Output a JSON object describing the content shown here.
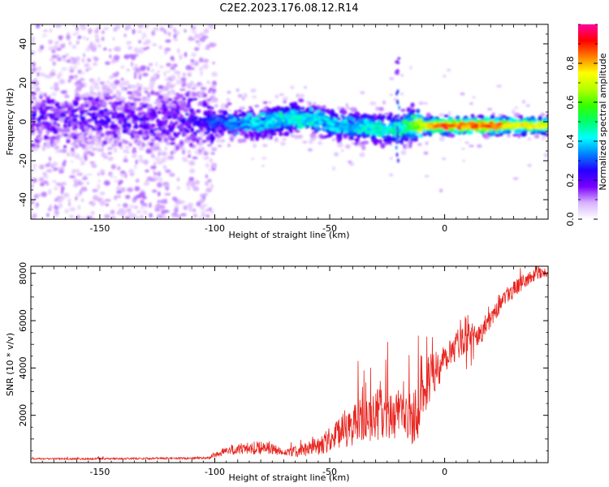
{
  "title": "C2E2.2023.176.08.12.R14",
  "chart_data": [
    {
      "type": "heatmap",
      "name": "spectrogram",
      "xlabel": "Height of straight line (km)",
      "ylabel": "Frequency (Hz)",
      "xlim": [
        -180,
        45
      ],
      "ylim": [
        -50,
        50
      ],
      "xticks": [
        -150,
        -100,
        -50,
        0
      ],
      "yticks": [
        -40,
        -20,
        0,
        20,
        40
      ],
      "xtick_labels": [
        "-150",
        "-100",
        "-50",
        "0"
      ],
      "ytick_labels": [
        "-40",
        "-20",
        "0",
        "20",
        "40"
      ],
      "ridge": {
        "x": [
          -180,
          -150,
          -120,
          -100,
          -80,
          -65,
          -55,
          -45,
          -35,
          -25,
          -20,
          -15,
          -10,
          -5,
          0,
          5,
          10,
          20,
          30,
          45
        ],
        "freq": [
          2,
          1,
          1,
          0,
          -1,
          2,
          1,
          -2,
          -3,
          -4,
          -4,
          -2,
          -2,
          -2,
          -2,
          -2,
          -2,
          -2,
          -2,
          -2
        ],
        "amplitude": [
          0.2,
          0.2,
          0.2,
          0.25,
          0.35,
          0.4,
          0.35,
          0.35,
          0.38,
          0.4,
          0.42,
          0.5,
          0.65,
          0.75,
          0.85,
          0.8,
          0.8,
          0.85,
          0.7,
          0.65
        ]
      },
      "annotations": [
        {
          "x": -20.5,
          "freq": 27,
          "note": "spur"
        }
      ],
      "colorbar": {
        "label": "Normalized spectral amplitude",
        "range": [
          0,
          1
        ],
        "ticks": [
          0.0,
          0.2,
          0.4,
          0.6,
          0.8
        ],
        "tick_labels": [
          "0.0",
          "0.2",
          "0.4",
          "0.6",
          "0.8"
        ],
        "colormap": "gist_ncar-like",
        "stops": [
          "#ffffff",
          "#d9b3ff",
          "#7a00ff",
          "#2400ff",
          "#0080ff",
          "#00ffff",
          "#00ff6a",
          "#35ff00",
          "#b5ff00",
          "#ffff00",
          "#ff8000",
          "#ff0000",
          "#ff00a0"
        ]
      }
    },
    {
      "type": "line",
      "name": "snr",
      "xlabel": "Height of straight line (km)",
      "ylabel": "SNR (10 * v/v)",
      "xlim": [
        -180,
        45
      ],
      "ylim": [
        0,
        8300
      ],
      "xticks": [
        -150,
        -100,
        -50,
        0
      ],
      "yticks": [
        2000,
        4000,
        6000,
        8000
      ],
      "xtick_labels": [
        "-150",
        "-100",
        "-50",
        "0"
      ],
      "ytick_labels": [
        "2000",
        "4000",
        "6000",
        "8000"
      ],
      "color": "#e8251f",
      "envelope": {
        "x": [
          -180,
          -150,
          -120,
          -102,
          -100,
          -95,
          -90,
          -80,
          -75,
          -70,
          -60,
          -50,
          -45,
          -40,
          -35,
          -30,
          -25,
          -20,
          -15,
          -12,
          -10,
          -5,
          0,
          5,
          10,
          15,
          20,
          25,
          30,
          35,
          40,
          45
        ],
        "mean": [
          150,
          150,
          170,
          180,
          300,
          450,
          500,
          550,
          500,
          350,
          450,
          800,
          1100,
          1300,
          1500,
          1700,
          1700,
          1600,
          1600,
          1700,
          2600,
          3500,
          4200,
          4800,
          5100,
          5200,
          6000,
          6800,
          7200,
          7600,
          7900,
          8000
        ],
        "noise": [
          60,
          60,
          70,
          80,
          200,
          350,
          400,
          500,
          400,
          300,
          500,
          900,
          1200,
          1500,
          1700,
          1800,
          1900,
          1900,
          2000,
          2100,
          1900,
          1600,
          1300,
          1100,
          1000,
          900,
          800,
          700,
          600,
          500,
          400,
          300
        ]
      }
    }
  ]
}
